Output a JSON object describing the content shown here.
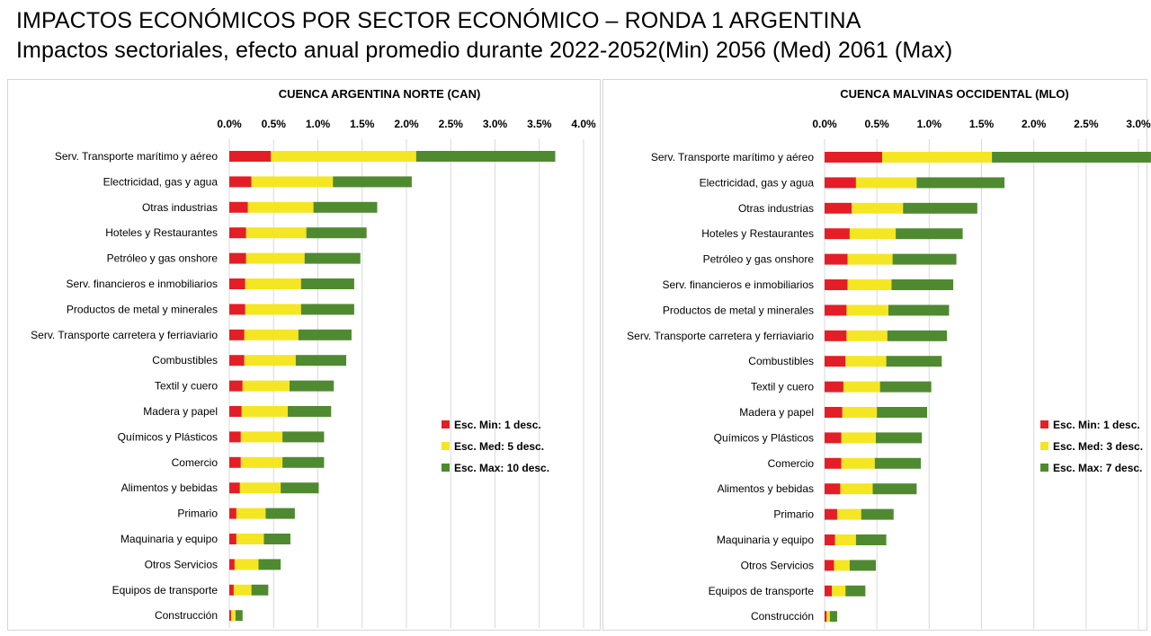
{
  "header": {
    "title": "IMPACTOS ECONÓMICOS POR SECTOR ECONÓMICO – RONDA 1 ARGENTINA",
    "subtitle": "Impactos sectoriales, efecto anual promedio durante 2022-2052(Min) 2056 (Med) 2061 (Max)"
  },
  "colors": {
    "min": "#e41e26",
    "med": "#f5e623",
    "max": "#4f8a30",
    "grid": "#d9d9d9"
  },
  "chart_data": [
    {
      "type": "bar",
      "orientation": "horizontal",
      "stacked": true,
      "title": "CUENCA ARGENTINA NORTE (CAN)",
      "xlim": [
        0,
        4.0
      ],
      "xticks": [
        "0.0%",
        "0.5%",
        "1.0%",
        "1.5%",
        "2.0%",
        "2.5%",
        "3.0%",
        "3.5%",
        "4.0%"
      ],
      "grid": true,
      "legend_position": "right",
      "categories": [
        "Serv. Transporte marítimo y aéreo",
        "Electricidad, gas y agua",
        "Otras industrias",
        "Hoteles y Restaurantes",
        "Petróleo y gas onshore",
        "Serv. financieros e inmobiliarios",
        "Productos de metal y minerales",
        "Serv. Transporte carretera y ferriaviario",
        "Combustibles",
        "Textil y cuero",
        "Madera y papel",
        "Químicos y Plásticos",
        "Comercio",
        "Alimentos y bebidas",
        "Primario",
        "Maquinaria y equipo",
        "Otros Servicios",
        "Equipos de transporte",
        "Construcción"
      ],
      "series": [
        {
          "name": "Esc. Min: 1 desc.",
          "values": [
            0.47,
            0.25,
            0.21,
            0.19,
            0.19,
            0.18,
            0.18,
            0.17,
            0.17,
            0.15,
            0.14,
            0.13,
            0.13,
            0.12,
            0.08,
            0.08,
            0.06,
            0.05,
            0.02
          ]
        },
        {
          "name": "Esc. Med: 5 desc.",
          "values": [
            1.64,
            0.92,
            0.74,
            0.68,
            0.66,
            0.63,
            0.63,
            0.61,
            0.58,
            0.53,
            0.52,
            0.47,
            0.47,
            0.46,
            0.33,
            0.31,
            0.27,
            0.2,
            0.05
          ]
        },
        {
          "name": "Esc. Max: 10 desc.",
          "values": [
            1.57,
            0.89,
            0.72,
            0.68,
            0.63,
            0.6,
            0.6,
            0.6,
            0.57,
            0.5,
            0.49,
            0.47,
            0.47,
            0.43,
            0.33,
            0.3,
            0.25,
            0.19,
            0.08
          ]
        }
      ]
    },
    {
      "type": "bar",
      "orientation": "horizontal",
      "stacked": true,
      "title": "CUENCA MALVINAS OCCIDENTAL (MLO)",
      "xlim": [
        0,
        3.0
      ],
      "xticks": [
        "0.0%",
        "0.5%",
        "1.0%",
        "1.5%",
        "2.0%",
        "2.5%",
        "3.0%"
      ],
      "grid": true,
      "legend_position": "right",
      "categories": [
        "Serv. Transporte marítimo y aéreo",
        "Electricidad, gas y agua",
        "Otras industrias",
        "Hoteles y Restaurantes",
        "Petróleo y gas onshore",
        "Serv. financieros e inmobiliarios",
        "Productos de metal y minerales",
        "Serv. Transporte carretera y ferriaviario",
        "Combustibles",
        "Textil y cuero",
        "Madera y papel",
        "Químicos y Plásticos",
        "Comercio",
        "Alimentos y bebidas",
        "Primario",
        "Maquinaria y equipo",
        "Otros Servicios",
        "Equipos de transporte",
        "Construcción"
      ],
      "series": [
        {
          "name": "Esc. Min: 1 desc.",
          "values": [
            0.55,
            0.3,
            0.26,
            0.24,
            0.22,
            0.22,
            0.21,
            0.21,
            0.2,
            0.18,
            0.17,
            0.16,
            0.16,
            0.15,
            0.12,
            0.1,
            0.09,
            0.07,
            0.02
          ]
        },
        {
          "name": "Esc. Med: 3 desc.",
          "values": [
            1.05,
            0.58,
            0.49,
            0.44,
            0.43,
            0.42,
            0.4,
            0.39,
            0.39,
            0.35,
            0.33,
            0.33,
            0.32,
            0.31,
            0.23,
            0.2,
            0.15,
            0.13,
            0.03
          ]
        },
        {
          "name": "Esc. Max: 7 desc.",
          "values": [
            1.52,
            0.84,
            0.71,
            0.64,
            0.61,
            0.59,
            0.58,
            0.57,
            0.53,
            0.49,
            0.48,
            0.44,
            0.44,
            0.42,
            0.31,
            0.29,
            0.25,
            0.19,
            0.07
          ]
        }
      ]
    }
  ]
}
